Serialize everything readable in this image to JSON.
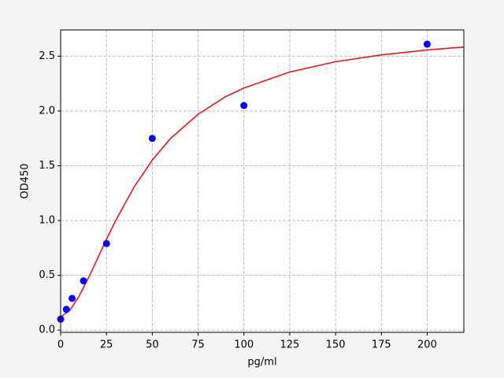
{
  "chart_data": {
    "type": "scatter",
    "xlabel": "pg/ml",
    "ylabel": "OD450",
    "xlim": [
      0,
      220
    ],
    "ylim": [
      -0.02,
      2.74
    ],
    "xticks": [
      0,
      25,
      50,
      75,
      100,
      125,
      150,
      175,
      200
    ],
    "yticks": [
      {
        "value": 0,
        "label": "0.0"
      },
      {
        "value": 0.5,
        "label": "0.5"
      },
      {
        "value": 1,
        "label": "1.0"
      },
      {
        "value": 1.5,
        "label": "1.5"
      },
      {
        "value": 2,
        "label": "2.0"
      },
      {
        "value": 2.5,
        "label": "2.5"
      }
    ],
    "grid": true,
    "series": [
      {
        "color": "#0000ff",
        "x": [
          0,
          3.125,
          6.25,
          12.5,
          25,
          50,
          100,
          200
        ],
        "values": [
          0.1,
          0.19,
          0.29,
          0.45,
          0.79,
          1.75,
          2.05,
          2.61
        ]
      },
      {
        "type": "line",
        "color": "#e41a1c",
        "x": [
          0,
          5,
          10,
          15,
          20,
          25,
          30,
          40,
          50,
          60,
          75,
          90,
          100,
          125,
          150,
          175,
          200,
          220
        ],
        "values": [
          0.12,
          0.181,
          0.309,
          0.472,
          0.649,
          0.83,
          0.999,
          1.304,
          1.552,
          1.75,
          1.97,
          2.131,
          2.21,
          2.356,
          2.45,
          2.512,
          2.557,
          2.584
        ]
      }
    ]
  }
}
